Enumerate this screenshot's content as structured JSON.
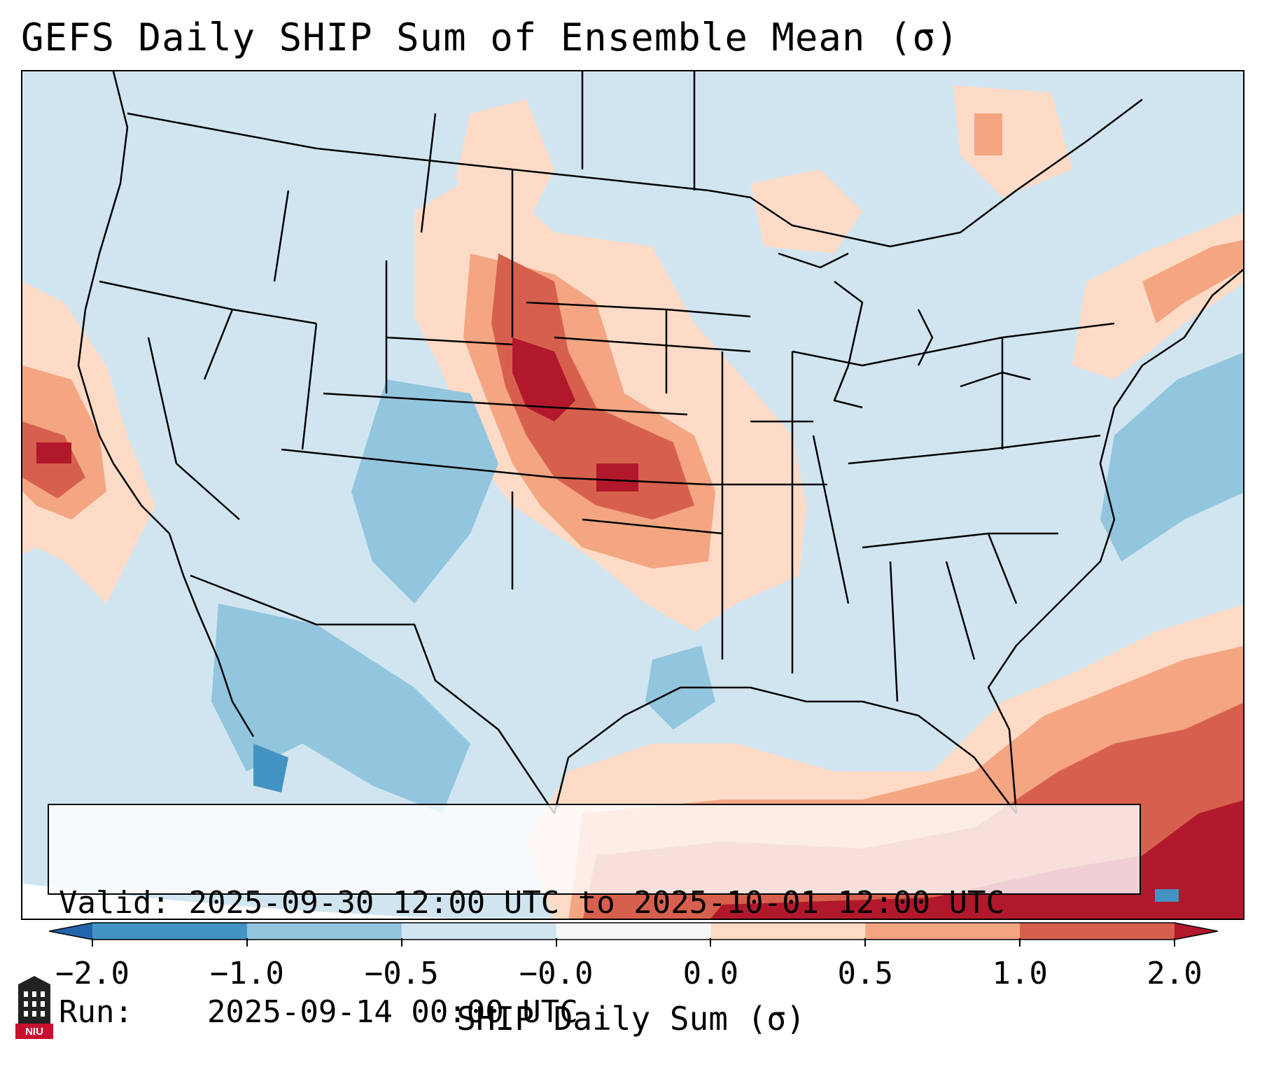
{
  "title": "GEFS Daily SHIP Sum of Ensemble Mean (σ)",
  "info": {
    "valid_label": "Valid:",
    "valid_value": "2025-09-30 12:00 UTC to 2025-10-01 12:00 UTC",
    "run_label": "Run:",
    "run_value": "2025-09-14 00:00 UTC"
  },
  "colorbar": {
    "label": "SHIP Daily Sum (σ)",
    "ticks": [
      "−2.0",
      "−1.0",
      "−0.5",
      "−0.0",
      "0.0",
      "0.5",
      "1.0",
      "2.0"
    ],
    "bins": [
      {
        "from": -2.0,
        "to": -1.0,
        "color": "#4393c3"
      },
      {
        "from": -1.0,
        "to": -0.5,
        "color": "#92c5de"
      },
      {
        "from": -0.5,
        "to": -0.0,
        "color": "#d1e5f0"
      },
      {
        "from": -0.0,
        "to": 0.0,
        "color": "#f7f7f7"
      },
      {
        "from": 0.0,
        "to": 0.5,
        "color": "#fddbc7"
      },
      {
        "from": 0.5,
        "to": 1.0,
        "color": "#f4a582"
      },
      {
        "from": 1.0,
        "to": 2.0,
        "color": "#d6604d"
      }
    ],
    "under_color": "#2166ac",
    "over_color": "#b2182b"
  },
  "logo": {
    "text": "NIU",
    "color": "#c8102e"
  }
}
